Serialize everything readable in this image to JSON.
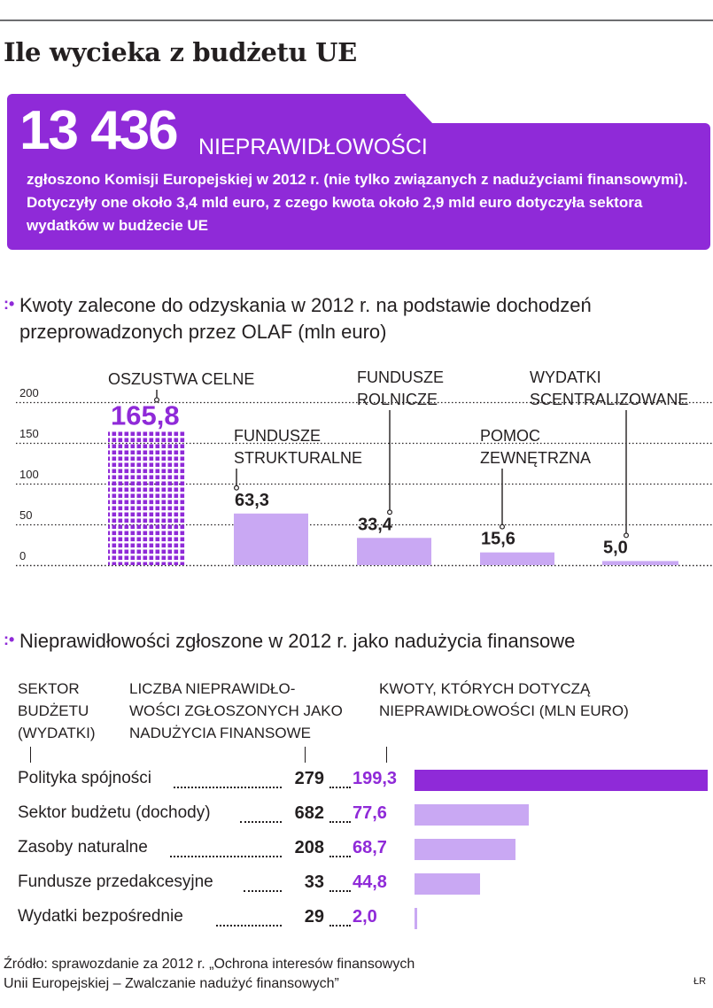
{
  "title": "Ile wycieka z budżetu UE",
  "highlight": {
    "number": "13 436",
    "label": "NIEPRAWIDŁOWOŚCI",
    "text": "zgłoszono Komisji Europejskiej w 2012 r. (nie tylko związanych z nadużyciami finansowymi). Dotyczyły one około 3,4 mld euro, z czego kwota około 2,9 mld euro dotyczyła sektora wydatków w budżecie UE"
  },
  "chart_data": [
    {
      "type": "bar",
      "title": "Kwoty zalecone do odzyskania w 2012 r. na podstawie dochodzeń przeprowadzonych przez OLAF (mln euro)",
      "categories": [
        "OSZUSTWA CELNE",
        "FUNDUSZE STRUKTURALNE",
        "FUNDUSZE ROLNICZE",
        "POMOC ZEWNĘTRZNA",
        "WYDATKI SCENTRALIZOWANE"
      ],
      "values": [
        165.8,
        63.3,
        33.4,
        15.6,
        5.0
      ],
      "value_labels": [
        "165,8",
        "63,3",
        "33,4",
        "15,6",
        "5,0"
      ],
      "ylim": [
        0,
        200
      ],
      "yticks": [
        0,
        50,
        100,
        150,
        200
      ],
      "grid": true,
      "colors": {
        "highlight": "#8f2ad8",
        "bar": "#c9a8f3"
      }
    },
    {
      "type": "bar",
      "orientation": "horizontal",
      "title": "Nieprawidłowości zgłoszone w 2012 r. jako nadużycia finansowe",
      "column_headers": [
        "SEKTOR\nBUDŻETU\n(WYDATKI)",
        "LICZBA NIEPRAWIDŁO-\nWOŚCI ZGŁOSZONYCH JAKO\nNADUŻYCIA FINANSOWE",
        "KWOTY, KTÓRYCH DOTYCZĄ\nNIEPRAWIDŁOWOŚCI (MLN EURO)"
      ],
      "categories": [
        "Polityka spójności",
        "Sektor budżetu (dochody)",
        "Zasoby naturalne",
        "Fundusze przedakcesyjne",
        "Wydatki bezpośrednie"
      ],
      "counts": [
        279,
        682,
        208,
        33,
        29
      ],
      "values": [
        199.3,
        77.6,
        68.7,
        44.8,
        2.0
      ],
      "value_labels": [
        "199,3",
        "77,6",
        "68,7",
        "44,8",
        "2,0"
      ],
      "colors": {
        "highlight": "#8f2ad8",
        "bar": "#c9a8f3"
      }
    }
  ],
  "footer": {
    "source": "Źródło: sprawozdanie za 2012 r. „Ochrona interesów finansowych\nUnii Europejskiej – Zwalczanie nadużyć finansowych”",
    "credit": "ŁR"
  }
}
